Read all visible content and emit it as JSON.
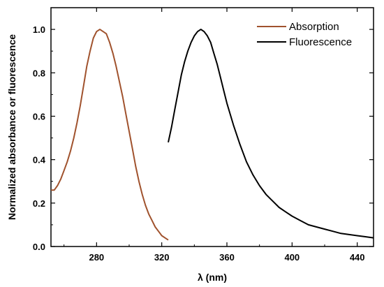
{
  "chart_data": {
    "type": "line",
    "title": "",
    "xlabel": "λ (nm)",
    "ylabel": "Normalized absorbance or fluorescence",
    "xlim": [
      252,
      450
    ],
    "ylim": [
      0.0,
      1.1
    ],
    "x_ticks": [
      280,
      320,
      360,
      400,
      440
    ],
    "y_ticks": [
      0.0,
      0.2,
      0.4,
      0.6,
      0.8,
      1.0
    ],
    "x_tick_labels": [
      "280",
      "320",
      "360",
      "400",
      "440"
    ],
    "y_tick_labels": [
      "0.0",
      "0.2",
      "0.4",
      "0.6",
      "0.8",
      "1.0"
    ],
    "grid": false,
    "legend_position": "top-right",
    "series": [
      {
        "name": "Absorption",
        "color": "#a0522d",
        "x": [
          252,
          254,
          256,
          258,
          260,
          262,
          264,
          266,
          268,
          270,
          272,
          274,
          276,
          278,
          280,
          282,
          284,
          286,
          288,
          290,
          292,
          294,
          296,
          298,
          300,
          302,
          304,
          306,
          308,
          310,
          312,
          314,
          316,
          318,
          320,
          322,
          324
        ],
        "y": [
          0.26,
          0.26,
          0.28,
          0.31,
          0.35,
          0.39,
          0.44,
          0.5,
          0.57,
          0.65,
          0.74,
          0.83,
          0.9,
          0.96,
          0.99,
          1.0,
          0.99,
          0.98,
          0.94,
          0.89,
          0.83,
          0.76,
          0.69,
          0.61,
          0.53,
          0.45,
          0.37,
          0.3,
          0.24,
          0.19,
          0.15,
          0.12,
          0.09,
          0.07,
          0.05,
          0.04,
          0.03
        ]
      },
      {
        "name": "Fluorescence",
        "color": "#000000",
        "x": [
          324,
          326,
          328,
          330,
          332,
          334,
          336,
          338,
          340,
          342,
          344,
          346,
          348,
          350,
          352,
          354,
          356,
          358,
          360,
          364,
          368,
          372,
          376,
          380,
          384,
          388,
          392,
          396,
          400,
          405,
          410,
          415,
          420,
          425,
          430,
          435,
          440,
          445,
          450
        ],
        "y": [
          0.48,
          0.55,
          0.63,
          0.71,
          0.79,
          0.85,
          0.9,
          0.94,
          0.97,
          0.99,
          1.0,
          0.99,
          0.97,
          0.94,
          0.89,
          0.84,
          0.78,
          0.72,
          0.66,
          0.56,
          0.47,
          0.39,
          0.33,
          0.28,
          0.24,
          0.21,
          0.18,
          0.16,
          0.14,
          0.12,
          0.1,
          0.09,
          0.08,
          0.07,
          0.06,
          0.055,
          0.05,
          0.045,
          0.04
        ]
      }
    ]
  }
}
